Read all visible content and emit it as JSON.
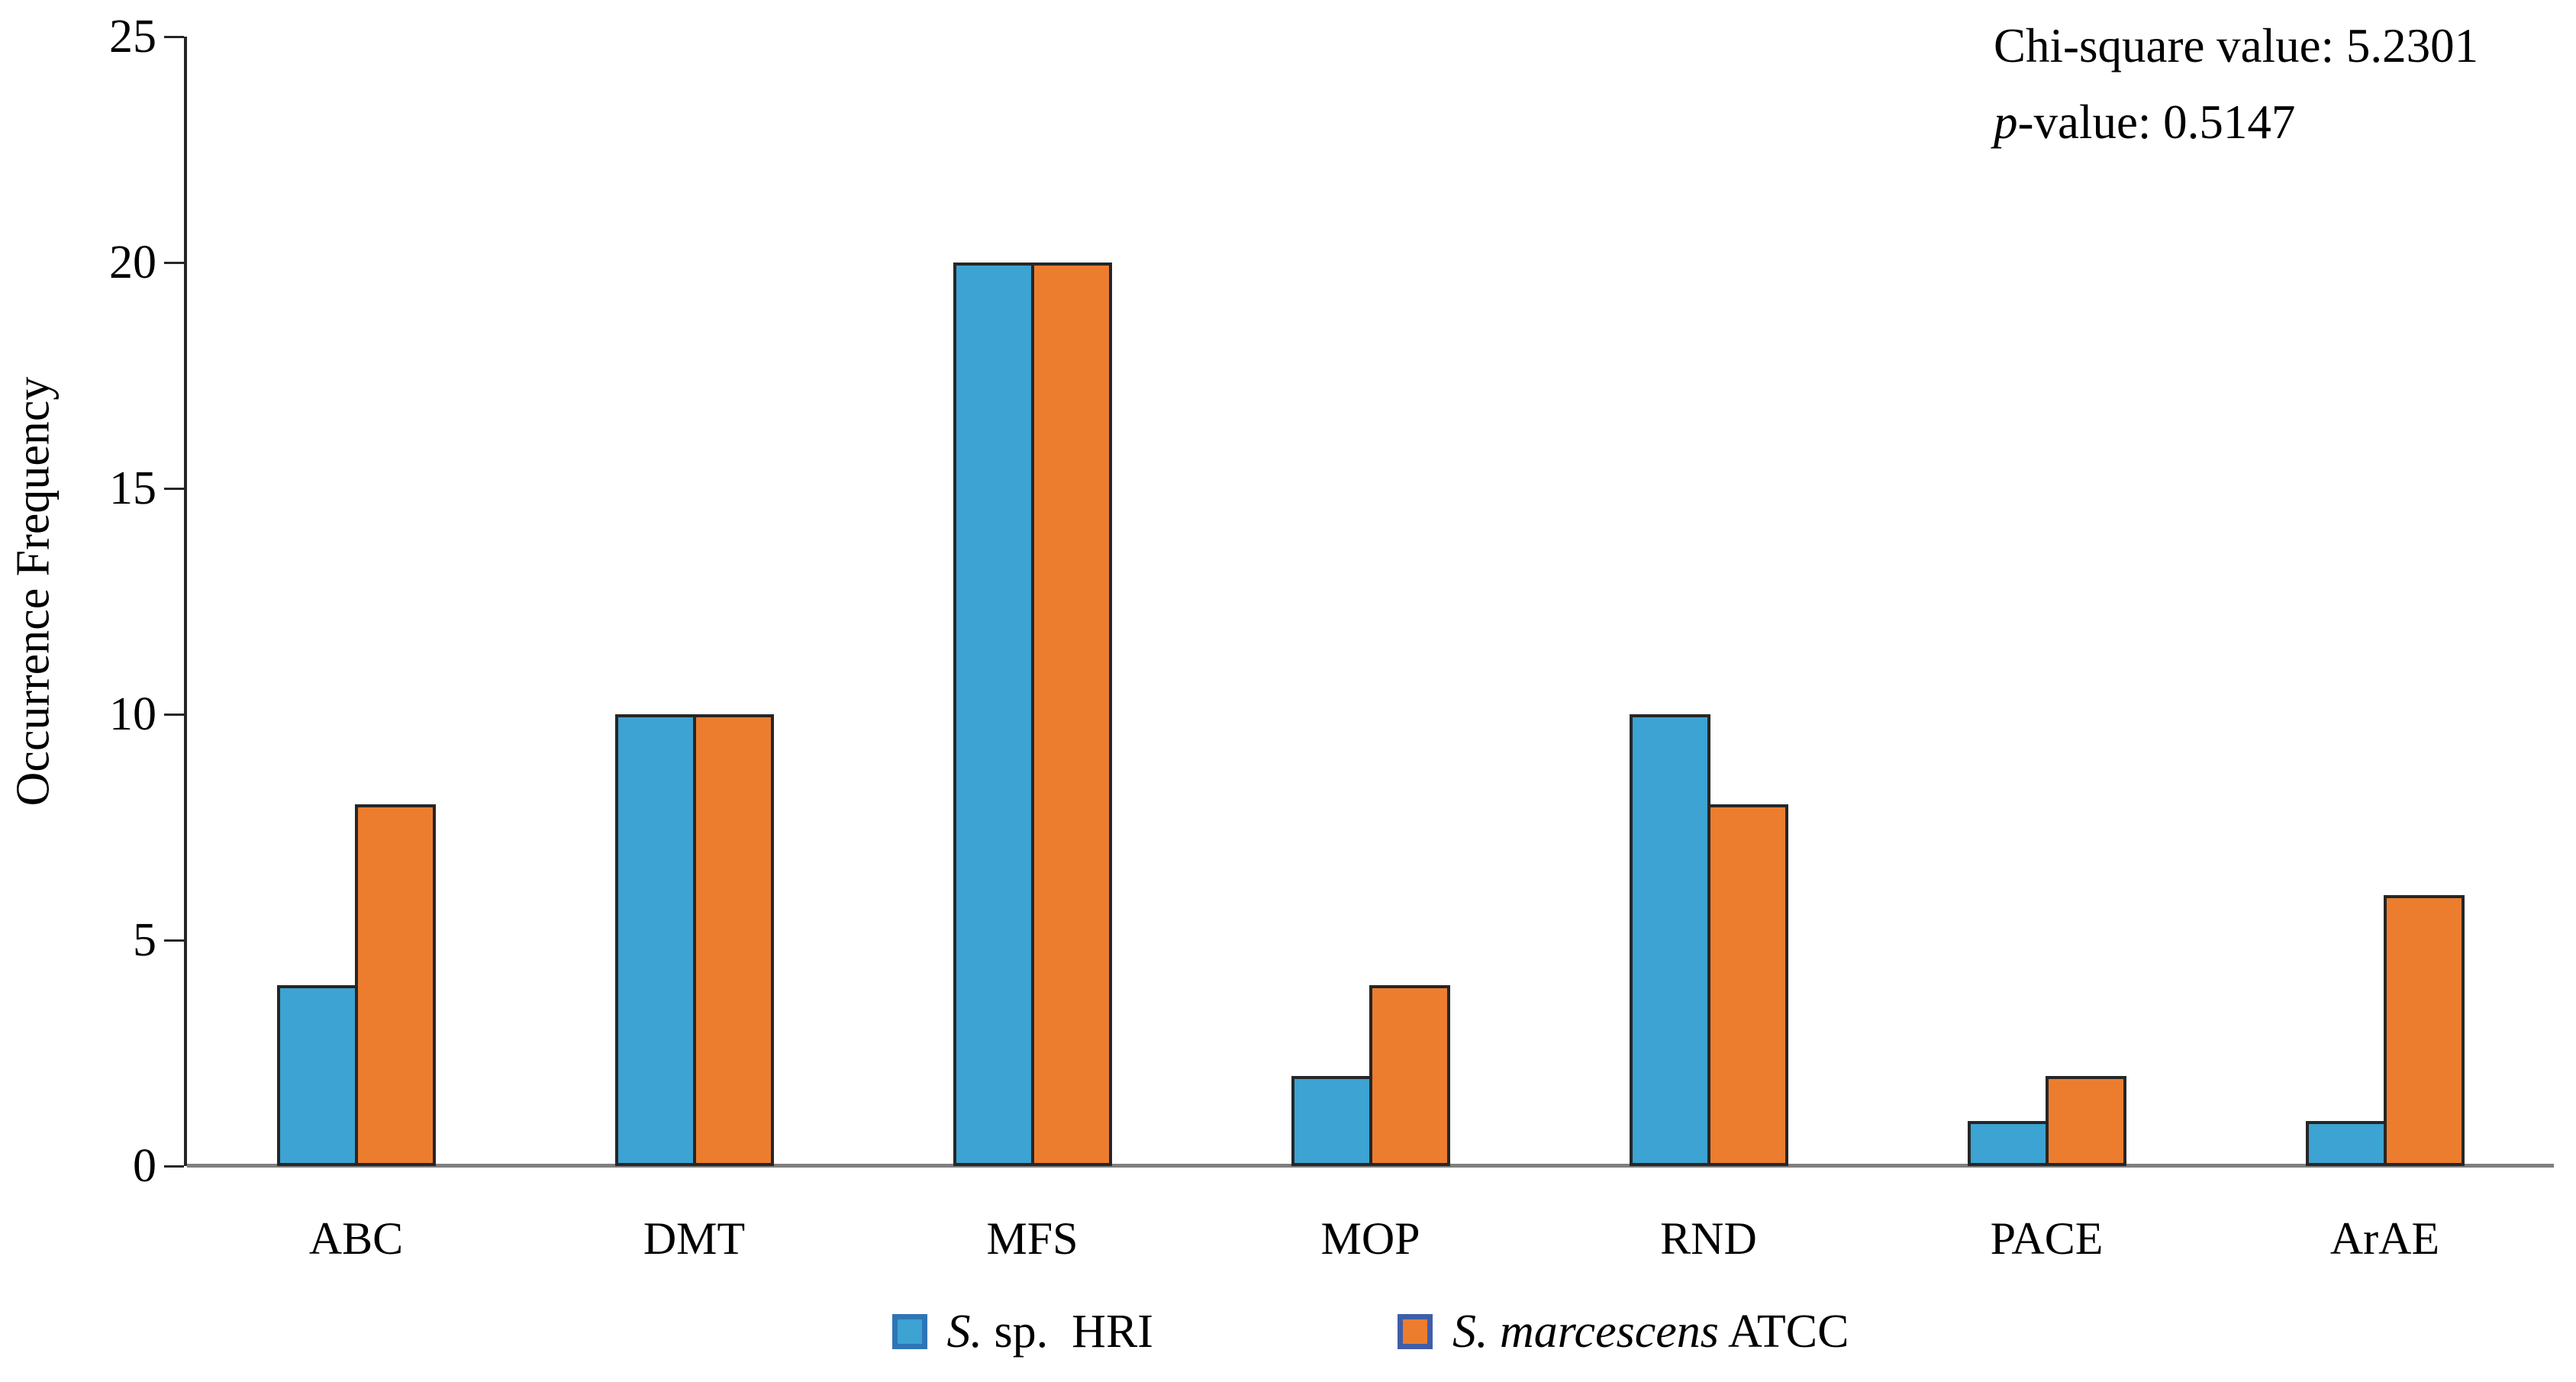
{
  "chart_data": {
    "type": "bar",
    "title": "",
    "xlabel": "",
    "ylabel": "Occurrence Frequency",
    "ylim": [
      0,
      25
    ],
    "yticks": [
      0,
      5,
      10,
      15,
      20,
      25
    ],
    "grid": false,
    "legend_position": "bottom",
    "categories": [
      "ABC",
      "DMT",
      "MFS",
      "MOP",
      "RND",
      "PACE",
      "ArAE"
    ],
    "series": [
      {
        "name": "S. sp.  HRI",
        "key": "hri",
        "label_italic": "S.",
        "label_roman": " sp.  HRI",
        "values": [
          4,
          10,
          20,
          2,
          10,
          1,
          1
        ],
        "fill": "#3CA3D2",
        "swatch_border": "#2E75B6"
      },
      {
        "name": "S. marcescens ATCC",
        "key": "atcc",
        "label_italic": "S. marcescens",
        "label_roman": " ATCC",
        "values": [
          8,
          10,
          20,
          4,
          8,
          2,
          6
        ],
        "fill": "#EC7D2F",
        "swatch_border": "#3F5EA9"
      }
    ],
    "bar_outline_color": "#262626",
    "axis_color": "#262626",
    "baseline_color": "#7F7F7F",
    "annotation": {
      "line1": "Chi-square value: 5.2301",
      "line2_italic": "p",
      "line2_rest": "-value: 0.5147"
    }
  }
}
